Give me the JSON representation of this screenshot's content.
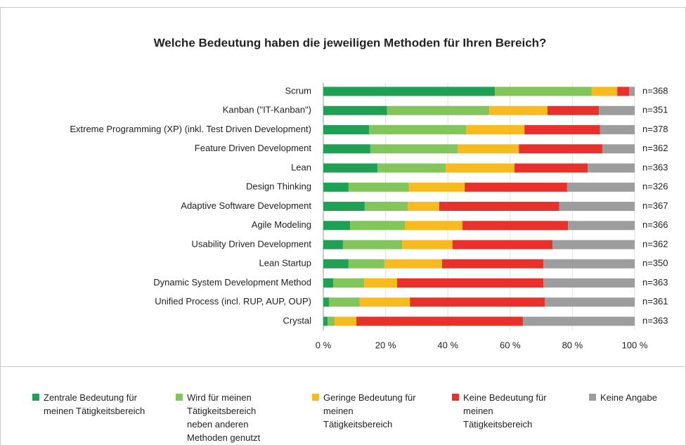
{
  "chart_data": {
    "type": "stacked_barh",
    "title": "Welche Bedeutung haben die jeweiligen Methoden für Ihren Bereich?",
    "categories": [
      "Scrum",
      "Kanban (\"IT-Kanban\")",
      "Extreme Programming (XP) (inkl. Test Driven Development)",
      "Feature Driven Development",
      "Lean",
      "Design Thinking",
      "Adaptive Software Development",
      "Agile Modeling",
      "Usability Driven Development",
      "Lean Startup",
      "Dynamic System Development Method",
      "Unified Process (incl. RUP, AUP, OUP)",
      "Crystal"
    ],
    "n_labels": [
      "n=368",
      "n=351",
      "n=378",
      "n=362",
      "n=363",
      "n=326",
      "n=367",
      "n=366",
      "n=362",
      "n=350",
      "n=363",
      "n=361",
      "n=363"
    ],
    "series": [
      {
        "name": "Zentrale Bedeutung für meinen Tätigkeitsbereich",
        "color": "#1fa055",
        "values": [
          55.1,
          20.5,
          14.7,
          15.1,
          17.4,
          8.1,
          13.3,
          8.6,
          6.3,
          8.1,
          3.2,
          1.8,
          1.4
        ]
      },
      {
        "name": "Wird für meinen Tätigkeitsbereich neben anderen Methoden genutzt",
        "color": "#82c55b",
        "values": [
          31.1,
          32.8,
          31.3,
          28.0,
          21.9,
          19.4,
          13.8,
          17.6,
          19.0,
          11.5,
          9.9,
          9.9,
          2.2
        ]
      },
      {
        "name": "Geringe Bedeutung für meinen Tätigkeitsbereich",
        "color": "#f8bb1f",
        "values": [
          8.2,
          18.7,
          18.6,
          19.7,
          22.1,
          17.9,
          10.1,
          18.5,
          16.2,
          18.5,
          10.6,
          16.1,
          7.0
        ]
      },
      {
        "name": "Keine Bedeutung für meinen Tätigkeitsbereich",
        "color": "#e8312b",
        "values": [
          3.8,
          16.5,
          24.3,
          26.8,
          23.5,
          32.9,
          38.6,
          33.9,
          32.1,
          32.6,
          47.0,
          43.3,
          53.5
        ]
      },
      {
        "name": "Keine Angabe",
        "color": "#9d9d9e",
        "values": [
          1.8,
          11.5,
          11.1,
          10.4,
          15.1,
          21.7,
          24.2,
          21.4,
          26.4,
          29.3,
          29.3,
          28.9,
          35.9
        ]
      }
    ],
    "xlim": [
      0,
      100
    ],
    "xticks": [
      {
        "value": 0,
        "label": "0 %"
      },
      {
        "value": 20,
        "label": "20 %"
      },
      {
        "value": 40,
        "label": "40 %"
      },
      {
        "value": 60,
        "label": "60 %"
      },
      {
        "value": 80,
        "label": "80 %"
      },
      {
        "value": 100,
        "label": "100 %"
      }
    ],
    "grid": true
  }
}
